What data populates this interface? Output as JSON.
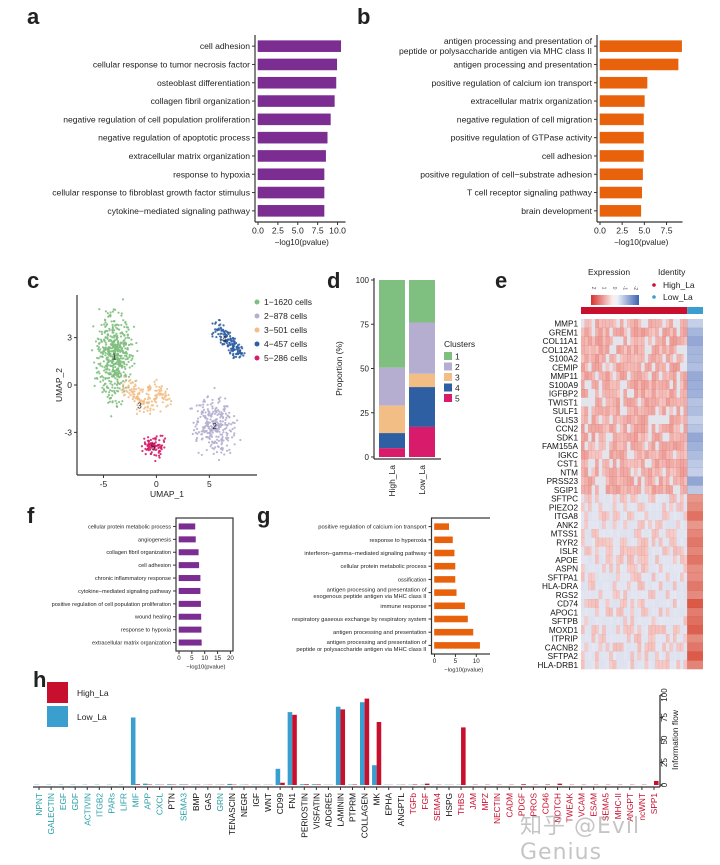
{
  "panels": {
    "a": "a",
    "b": "b",
    "c": "c",
    "d": "d",
    "e": "e",
    "f": "f",
    "g": "g",
    "h": "h"
  },
  "watermark": "知乎 @Evil Genius",
  "colors": {
    "purple": "#7b2d91",
    "orange": "#e8620c",
    "cluster1": "#7fbf7f",
    "cluster2": "#b5aed0",
    "cluster3": "#f2be86",
    "cluster4": "#2f5fa3",
    "cluster5": "#d81b6a",
    "high": "#c8102e",
    "low": "#3a9fcf",
    "heat_red": "#e04b3c",
    "heat_blue": "#3a63b3",
    "label_teal": "#2a9fa8",
    "label_red": "#c8102e",
    "label_black": "#111111"
  },
  "chart_data": [
    {
      "id": "a",
      "type": "bar",
      "orientation": "horizontal",
      "categories": [
        "cell adhesion",
        "cellular response to tumor necrosis factor",
        "osteoblast differentiation",
        "collagen fibril organization",
        "negative regulation of cell population proliferation",
        "negative regulation of apoptotic process",
        "extracellular matrix organization",
        "response to hypoxia",
        "cellular response to fibroblast growth factor stimulus",
        "cytokine−mediated signaling pathway"
      ],
      "values": [
        10.4,
        9.9,
        9.8,
        9.6,
        9.1,
        8.7,
        8.5,
        8.3,
        8.3,
        8.3
      ],
      "xlabel": "−log10(pvalue)",
      "xticks": [
        "0.0",
        "2.5",
        "5.0",
        "7.5",
        "10.0"
      ],
      "xlim": [
        0,
        11
      ]
    },
    {
      "id": "b",
      "type": "bar",
      "orientation": "horizontal",
      "categories": [
        "antigen processing and presentation of\npeptide or polysaccharide antigen via MHC class II",
        "antigen processing and presentation",
        "positive regulation of calcium ion transport",
        "extracellular matrix organization",
        "negative regulation of cell migration",
        "positive regulation of GTPase activity",
        "cell adhesion",
        "positive regulation of cell−substrate adhesion",
        "T cell receptor signaling pathway",
        "brain development"
      ],
      "values": [
        9.2,
        8.8,
        5.3,
        5.0,
        4.9,
        4.9,
        4.9,
        4.8,
        4.7,
        4.6
      ],
      "xlabel": "−log10(pvalue)",
      "xticks": [
        "0.0",
        "2.5",
        "5.0",
        "7.5"
      ],
      "xlim": [
        0,
        9.3
      ]
    },
    {
      "id": "c",
      "type": "scatter",
      "xlabel": "UMAP_1",
      "ylabel": "UMAP_2",
      "xticks": [
        "-5",
        "0",
        "5"
      ],
      "yticks": [
        "-3",
        "0",
        "3"
      ],
      "xlim": [
        -7.5,
        9.5
      ],
      "ylim": [
        -5.7,
        5.7
      ],
      "legend": [
        "1−1620  cells",
        "2−878  cells",
        "3−501  cells",
        "4−457  cells",
        "5−286  cells"
      ],
      "cluster_labels": [
        "1",
        "2",
        "3",
        "4",
        "5"
      ],
      "cluster_centers": [
        [
          -4.0,
          1.8
        ],
        [
          5.5,
          -2.6
        ],
        [
          -1.6,
          -1.3
        ],
        [
          6.4,
          2.9
        ],
        [
          -0.3,
          -3.9
        ]
      ],
      "cluster_sizes": [
        1620,
        878,
        501,
        457,
        286
      ]
    },
    {
      "id": "d",
      "type": "bar",
      "stacked": true,
      "ylabel": "Proportion (%)",
      "categories": [
        "High_La",
        "Low_La"
      ],
      "yticks": [
        "0",
        "25",
        "50",
        "75",
        "100"
      ],
      "ylim": [
        0,
        100
      ],
      "legend_title": "Clusters",
      "series": [
        {
          "name": "1",
          "values": [
            49.5,
            24
          ]
        },
        {
          "name": "2",
          "values": [
            21.5,
            29
          ]
        },
        {
          "name": "3",
          "values": [
            15.5,
            7.5
          ]
        },
        {
          "name": "4",
          "values": [
            8.5,
            22.5
          ]
        },
        {
          "name": "5",
          "values": [
            5,
            17
          ]
        }
      ]
    },
    {
      "id": "e",
      "type": "heatmap",
      "legend_expression_title": "Expression",
      "legend_expression_ticks": [
        "2",
        "1",
        "0",
        "-1",
        "-2"
      ],
      "legend_identity_title": "Identity",
      "identity": [
        "High_La",
        "Low_La"
      ],
      "identity_fraction_high": 0.87,
      "genes": [
        "MMP1",
        "GREM1",
        "COL11A1",
        "COL12A1",
        "S100A2",
        "CEMIP",
        "MMP11",
        "S100A9",
        "IGFBP2",
        "TWIST1",
        "SULF1",
        "GLIS3",
        "CCN2",
        "SDK1",
        "FAM155A",
        "IGKC",
        "CST1",
        "NTM",
        "PRSS23",
        "SGIP1",
        "SFTPC",
        "PIEZO2",
        "ITGA8",
        "ANK2",
        "MTSS1",
        "RYR2",
        "ISLR",
        "APOE",
        "ASPN",
        "SFTPA1",
        "HLA-DRA",
        "RGS2",
        "CD74",
        "APOC1",
        "SFTPB",
        "MOXD1",
        "ITPRIP",
        "CACNB2",
        "SFTPA2",
        "HLA-DRB1"
      ],
      "high_la_up_count": 20
    },
    {
      "id": "f",
      "type": "bar",
      "orientation": "horizontal",
      "categories": [
        "cellular protein metabolic process",
        "angiogenesis",
        "collagen fibril organization",
        "cell adhesion",
        "chronic inflammatory response",
        "cytokine−mediated signaling pathway",
        "positive regulation of cell population proliferation",
        "wound healing",
        "response to hypoxia",
        "extracellular matrix organization"
      ],
      "values": [
        6.2,
        6.4,
        7.5,
        7.7,
        8.2,
        8.2,
        8.4,
        8.5,
        8.6,
        8.7
      ],
      "xlabel": "−log10(pvalue)",
      "xticks": [
        "0",
        "5",
        "10",
        "15",
        "20"
      ],
      "xlim": [
        0,
        21
      ]
    },
    {
      "id": "g",
      "type": "bar",
      "orientation": "horizontal",
      "categories": [
        "positive regulation of calcium ion transport",
        "response to hyperoxia",
        "interferon−gamma−mediated signaling pathway",
        "cellular protein metabolic process",
        "ossification",
        "antigen processing and presentation of\nexogenous peptide antigen via MHC class II",
        "immune response",
        "respiratory gaseous exchange by respiratory system",
        "antigen processing and presentation",
        "antigen processing and presentation of\npeptide or polysaccharide antigen via MHC class II"
      ],
      "values": [
        3.4,
        4.3,
        4.7,
        4.9,
        4.9,
        5.2,
        7.2,
        7.9,
        9.2,
        10.8
      ],
      "xlabel": "−log10(pvalue)",
      "xticks": [
        "0",
        "5",
        "10"
      ],
      "xlim": [
        0,
        14
      ]
    },
    {
      "id": "h",
      "type": "bar",
      "grouped": true,
      "ylabel": "Information flow",
      "yticks": [
        "0",
        "25",
        "50",
        "75",
        "100"
      ],
      "ylim": [
        0,
        100
      ],
      "legend": [
        "High_La",
        "Low_La"
      ],
      "categories": [
        "NPNT",
        "GALECTIN",
        "EGF",
        "GDF",
        "ACTIVIN",
        "ITGB2",
        "PARs",
        "LIFR",
        "MIF",
        "APP",
        "CXCL",
        "PTN",
        "SEMA3",
        "BMP",
        "GAS",
        "GRN",
        "TENASCIN",
        "NEGR",
        "IGF",
        "WNT",
        "CD99",
        "FN1",
        "PERIOSTIN",
        "VISFATIN",
        "ADGRE5",
        "LAMININ",
        "PTPRM",
        "COLLAGEN",
        "MK",
        "EPHA",
        "ANGPTL",
        "TGFb",
        "FGF",
        "SEMA4",
        "HSPG",
        "THBS",
        "JAM",
        "MPZ",
        "NECTIN",
        "CADM",
        "PDGF",
        "PROS",
        "CD46",
        "NOTCH",
        "TWEAK",
        "VCAM",
        "ESAM",
        "SEMA5",
        "MHC-II",
        "ANGPT",
        "ncWNT",
        "SPP1"
      ],
      "label_color_groups": [
        "teal",
        "teal",
        "teal",
        "teal",
        "teal",
        "teal",
        "teal",
        "teal",
        "teal",
        "teal",
        "teal",
        "black",
        "teal",
        "black",
        "black",
        "teal",
        "black",
        "black",
        "black",
        "black",
        "black",
        "black",
        "black",
        "black",
        "black",
        "black",
        "black",
        "black",
        "black",
        "black",
        "black",
        "red",
        "red",
        "red",
        "black",
        "red",
        "red",
        "red",
        "red",
        "red",
        "red",
        "red",
        "red",
        "red",
        "red",
        "red",
        "red",
        "red",
        "red",
        "red",
        "red",
        "red"
      ],
      "series": [
        {
          "name": "Low_La",
          "values": [
            0.3,
            0.3,
            0.3,
            0.3,
            0.3,
            0.3,
            0.3,
            0.3,
            75,
            1.5,
            0.5,
            0.8,
            0.6,
            0.3,
            0.3,
            0.3,
            1.2,
            0.3,
            0.3,
            0.3,
            18,
            81,
            0.8,
            0.8,
            0.3,
            87,
            0.4,
            92,
            22,
            0.3,
            0.3,
            0.3,
            0.3,
            0.2,
            0.3,
            0.3,
            0,
            0,
            0,
            0,
            0,
            0,
            0,
            0,
            0,
            0,
            0,
            0,
            0,
            0,
            0,
            0
          ]
        },
        {
          "name": "High_La",
          "values": [
            0,
            0,
            0,
            0,
            0,
            0,
            0,
            0,
            0.8,
            0.5,
            0.3,
            0.4,
            0.4,
            0.3,
            0.3,
            0.3,
            0.4,
            0.3,
            0.2,
            0.2,
            2.5,
            78,
            0.8,
            0.6,
            0.2,
            84,
            0.5,
            96,
            70,
            0.2,
            0.3,
            0.5,
            1.5,
            0.3,
            0.2,
            64,
            0.3,
            0.3,
            0.3,
            0.3,
            0.8,
            0.3,
            0.5,
            1.5,
            0.3,
            0.3,
            0.3,
            0.3,
            0.3,
            0.3,
            0.3,
            4.5
          ]
        }
      ]
    }
  ]
}
